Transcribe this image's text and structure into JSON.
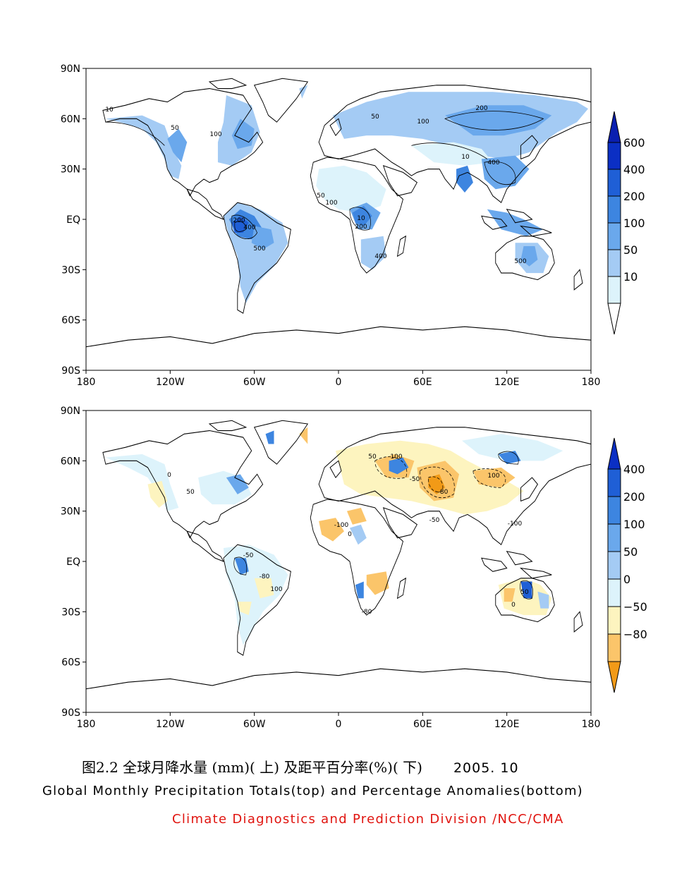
{
  "maps": [
    {
      "id": "totals",
      "lat_ticks": [
        "90N",
        "60N",
        "30N",
        "EQ",
        "30S",
        "60S",
        "90S"
      ],
      "lon_ticks": [
        "180",
        "120W",
        "60W",
        "0",
        "60E",
        "120E",
        "180"
      ],
      "legend": {
        "levels": [
          "600",
          "400",
          "200",
          "100",
          "50",
          "10"
        ],
        "colors": [
          "#0b2fc4",
          "#1f5fd6",
          "#3d85e0",
          "#6aa8ec",
          "#a4cbf4",
          "#ddf3fb"
        ],
        "top_color": "#0a1fb0",
        "bottom_color": "#ffffff"
      },
      "contour_labels": [
        "10",
        "50",
        "100",
        "200",
        "400",
        "500"
      ]
    },
    {
      "id": "anomalies",
      "lat_ticks": [
        "90N",
        "60N",
        "30N",
        "EQ",
        "30S",
        "60S",
        "90S"
      ],
      "lon_ticks": [
        "180",
        "120W",
        "60W",
        "0",
        "60E",
        "120E",
        "180"
      ],
      "legend": {
        "levels": [
          "400",
          "200",
          "100",
          "50",
          "0",
          "−50",
          "−80"
        ],
        "colors": [
          "#1f5fd6",
          "#3d85e0",
          "#6aa8ec",
          "#a4cbf4",
          "#ddf3fb",
          "#fdf4bf",
          "#fbc56a"
        ],
        "top_color": "#0b2fc4",
        "bottom_color": "#f29a17"
      },
      "contour_labels": [
        "0",
        "50",
        "-50",
        "-80",
        "100",
        "-100"
      ]
    }
  ],
  "caption": {
    "chinese": "图2.2  全球月降水量 (mm)( 上) 及距平百分率(%)( 下)",
    "date": "2005. 10",
    "english": "Global Monthly Precipitation Totals(top) and Percentage Anomalies(bottom)",
    "credit": "Climate Diagnostics and Prediction Division /NCC/CMA",
    "credit_color": "#e0140f"
  }
}
